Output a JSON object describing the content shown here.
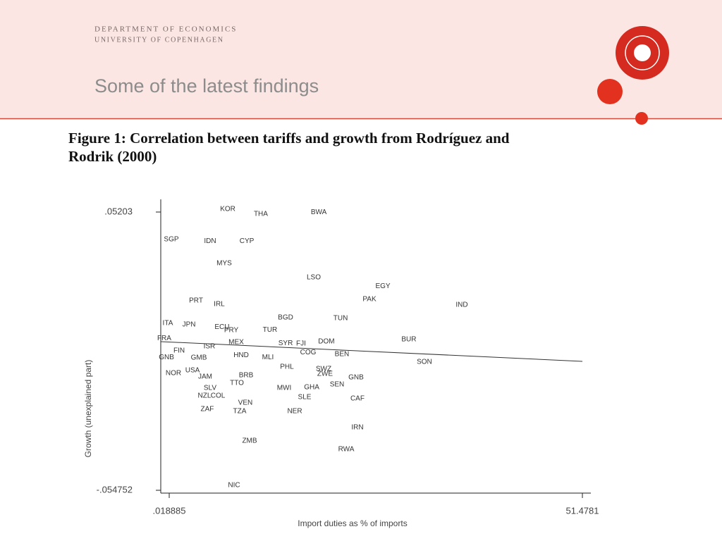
{
  "header": {
    "department": "DEPARTMENT OF ECONOMICS",
    "university": "UNIVERSITY OF COPENHAGEN",
    "title": "Some of the latest findings"
  },
  "chart_data": {
    "type": "scatter",
    "title": "Figure 1: Correlation between tariffs and growth from Rodríguez and",
    "title_line2": "Rodrik (2000)",
    "x_label": "Import duties as % of imports",
    "y_label": "Growth (unexplained part)",
    "xlim": [
      0.018885,
      51.4781
    ],
    "ylim": [
      -0.054752,
      0.05203
    ],
    "xticks": [
      {
        "value": 0.018885,
        "label": ".018885"
      },
      {
        "value": 51.4781,
        "label": "51.4781"
      }
    ],
    "yticks": [
      {
        "value": -0.054752,
        "label": "-.054752"
      },
      {
        "value": 0.05203,
        "label": ".05203"
      }
    ],
    "labels": [
      "KOR",
      "THA",
      "BWA",
      "SGP",
      "IDN",
      "CYP",
      "MYS",
      "LSO",
      "EGY",
      "PAK",
      "IND",
      "PRT",
      "IRL",
      "ITA",
      "JPN",
      "BGD",
      "TUN",
      "ECU",
      "PRY",
      "TUR",
      "FRA",
      "BUR",
      "DOM",
      "SYR",
      "FJI",
      "MEX",
      "PHL",
      "BEN",
      "COG",
      "MLI",
      "FIN",
      "ISR",
      "GMB",
      "GNB",
      "HND",
      "SON",
      "NOR",
      "USA",
      "JAM",
      "BRB",
      "SWZ",
      "ZWE",
      "GNB",
      "SEN",
      "TTO",
      "SLV",
      "MWI",
      "GHA",
      "NZL",
      "COL",
      "SLE",
      "CAF",
      "VEN",
      "ZAF",
      "TZA",
      "NER",
      "IRN",
      "ZMB",
      "RWA",
      "NIC"
    ],
    "x": [
      7.31,
      11.43,
      18.64,
      0.28,
      5.11,
      9.68,
      6.87,
      18.02,
      26.63,
      24.96,
      36.46,
      3.36,
      6.25,
      -0.16,
      2.48,
      14.51,
      21.36,
      6.6,
      7.75,
      12.57,
      -0.6,
      29.87,
      19.6,
      14.51,
      16.44,
      8.36,
      14.68,
      21.53,
      17.32,
      12.31,
      1.25,
      5.02,
      3.71,
      -0.33,
      8.98,
      31.8,
      0.55,
      2.92,
      4.5,
      9.59,
      19.25,
      19.42,
      23.29,
      20.92,
      8.45,
      5.11,
      14.33,
      17.76,
      4.41,
      6.08,
      16.88,
      23.46,
      9.5,
      4.76,
      8.8,
      15.65,
      23.46,
      10.03,
      22.06,
      8.1
    ],
    "y": [
      0.0531,
      0.0512,
      0.052,
      0.0415,
      0.0409,
      0.0409,
      0.0323,
      0.0269,
      0.0236,
      0.0185,
      0.0164,
      0.018,
      0.0166,
      0.0093,
      0.0088,
      0.0115,
      0.0112,
      0.0079,
      0.0066,
      0.0068,
      0.0036,
      0.0031,
      0.0023,
      0.0017,
      0.0015,
      0.002,
      -0.0074,
      -0.0026,
      -0.0018,
      -0.0037,
      -0.0012,
      0.0004,
      -0.0039,
      -0.0037,
      -0.0029,
      -0.0055,
      -0.0099,
      -0.0088,
      -0.0112,
      -0.0107,
      -0.0082,
      -0.0101,
      -0.0115,
      -0.0142,
      -0.0136,
      -0.0155,
      -0.0155,
      -0.0153,
      -0.0185,
      -0.0185,
      -0.019,
      -0.0196,
      -0.0212,
      -0.0236,
      -0.0245,
      -0.0245,
      -0.0307,
      -0.0358,
      -0.0391,
      -0.0528
    ],
    "fit_line": {
      "x": [
        -1.03,
        51.4781
      ],
      "y": [
        0.0023,
        -0.00527
      ]
    }
  }
}
